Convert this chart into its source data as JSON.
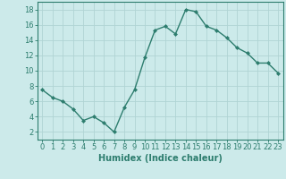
{
  "x": [
    0,
    1,
    2,
    3,
    4,
    5,
    6,
    7,
    8,
    9,
    10,
    11,
    12,
    13,
    14,
    15,
    16,
    17,
    18,
    19,
    20,
    21,
    22,
    23
  ],
  "y": [
    7.5,
    6.5,
    6.0,
    5.0,
    3.5,
    4.0,
    3.2,
    2.0,
    5.2,
    7.5,
    11.7,
    15.3,
    15.8,
    14.8,
    18.0,
    17.7,
    15.8,
    15.3,
    14.3,
    13.0,
    12.3,
    11.0,
    11.0,
    9.7
  ],
  "line_color": "#2d7d6e",
  "marker": "D",
  "marker_size": 2.0,
  "line_width": 1.0,
  "bg_color": "#cceaea",
  "grid_color": "#b0d4d4",
  "xlim": [
    -0.5,
    23.5
  ],
  "ylim": [
    1,
    19
  ],
  "yticks": [
    2,
    4,
    6,
    8,
    10,
    12,
    14,
    16,
    18
  ],
  "xticks": [
    0,
    1,
    2,
    3,
    4,
    5,
    6,
    7,
    8,
    9,
    10,
    11,
    12,
    13,
    14,
    15,
    16,
    17,
    18,
    19,
    20,
    21,
    22,
    23
  ],
  "tick_color": "#2d7d6e",
  "label_color": "#2d7d6e",
  "xlabel": "Humidex (Indice chaleur)",
  "xlabel_fontsize": 7,
  "tick_fontsize": 6
}
